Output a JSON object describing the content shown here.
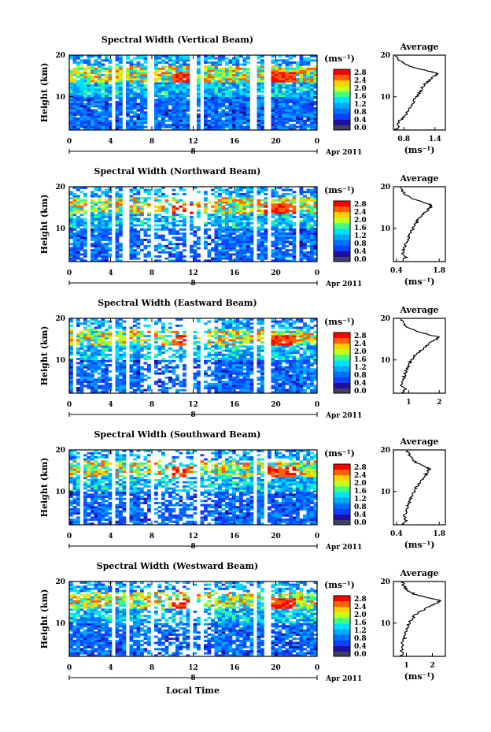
{
  "figure": {
    "x_axis_label": "Local Time",
    "date_label": "Apr 2011",
    "day_label": "8",
    "unit_label": "(ms⁻¹)",
    "y_axis_label": "Height (km)"
  },
  "colorbar": {
    "ticks": [
      "2.8",
      "2.4",
      "2.0",
      "1.6",
      "1.2",
      "0.8",
      "0.4",
      "0.0"
    ],
    "colors": [
      "#ff0000",
      "#ff8000",
      "#ffff00",
      "#80ff40",
      "#00ffff",
      "#0090ff",
      "#0040ff",
      "#404080",
      "#000000"
    ]
  },
  "chart_data": [
    {
      "type": "heatmap",
      "title": "Spectral Width (Vertical Beam)",
      "x_ticks": [
        "0",
        "4",
        "8",
        "12",
        "16",
        "20",
        "0"
      ],
      "y_ticks": [
        "20",
        "10"
      ],
      "xlim": [
        0,
        24
      ],
      "ylim": [
        2,
        20
      ],
      "avg_title": "Average",
      "avg_xlabel": "(ms⁻¹)",
      "avg_x_ticks": [
        "0.8",
        "1.4"
      ],
      "avg_xlim": [
        0.6,
        1.6
      ],
      "avg_profile": {
        "height": [
          2,
          3,
          4,
          5,
          6,
          7,
          8,
          9,
          10,
          11,
          12,
          13,
          14,
          15,
          15.5,
          16,
          17,
          18,
          19,
          20
        ],
        "value": [
          0.65,
          0.7,
          0.7,
          0.8,
          0.85,
          0.9,
          0.95,
          1.0,
          1.05,
          1.1,
          1.15,
          1.2,
          1.3,
          1.4,
          1.45,
          1.35,
          1.0,
          0.8,
          0.7,
          0.65
        ]
      }
    },
    {
      "type": "heatmap",
      "title": "Spectral Width (Northward Beam)",
      "x_ticks": [
        "0",
        "4",
        "8",
        "12",
        "16",
        "20",
        "0"
      ],
      "y_ticks": [
        "20",
        "10"
      ],
      "xlim": [
        0,
        24
      ],
      "ylim": [
        2,
        20
      ],
      "avg_title": "Average",
      "avg_xlabel": "(ms⁻¹)",
      "avg_x_ticks": [
        "0.4",
        "1.8"
      ],
      "avg_xlim": [
        0.3,
        2.0
      ],
      "avg_profile": {
        "height": [
          2,
          3,
          4,
          5,
          6,
          7,
          8,
          9,
          10,
          11,
          12,
          13,
          14,
          15,
          15.5,
          16,
          17,
          18,
          19,
          20
        ],
        "value": [
          0.6,
          0.7,
          0.6,
          0.65,
          0.7,
          0.75,
          0.8,
          0.85,
          0.95,
          1.0,
          1.1,
          1.2,
          1.35,
          1.5,
          1.55,
          1.4,
          1.0,
          0.7,
          0.6,
          0.55
        ]
      }
    },
    {
      "type": "heatmap",
      "title": "Spectral Width (Eastward Beam)",
      "x_ticks": [
        "0",
        "4",
        "8",
        "12",
        "16",
        "20",
        "0"
      ],
      "y_ticks": [
        "20",
        "10"
      ],
      "xlim": [
        0,
        24
      ],
      "ylim": [
        2,
        20
      ],
      "avg_title": "Average",
      "avg_xlabel": "",
      "avg_x_ticks": [
        "1",
        "2"
      ],
      "avg_xlim": [
        0.5,
        2.2
      ],
      "avg_profile": {
        "height": [
          2,
          3,
          4,
          5,
          6,
          7,
          8,
          9,
          10,
          11,
          12,
          13,
          14,
          15,
          15.5,
          16,
          17,
          18,
          19,
          20
        ],
        "value": [
          0.8,
          0.9,
          0.75,
          0.8,
          0.85,
          0.9,
          0.95,
          1.0,
          1.1,
          1.2,
          1.35,
          1.5,
          1.7,
          1.9,
          2.0,
          1.7,
          1.2,
          0.9,
          0.8,
          0.75
        ]
      }
    },
    {
      "type": "heatmap",
      "title": "Spectral Width (Southward Beam)",
      "x_ticks": [
        "0",
        "4",
        "8",
        "12",
        "16",
        "20",
        "0"
      ],
      "y_ticks": [
        "20",
        "10"
      ],
      "xlim": [
        0,
        24
      ],
      "ylim": [
        2,
        20
      ],
      "avg_title": "Average",
      "avg_xlabel": "(ms⁻¹)",
      "avg_x_ticks": [
        "0.4",
        "1.8"
      ],
      "avg_xlim": [
        0.3,
        2.0
      ],
      "avg_profile": {
        "height": [
          2,
          3,
          4,
          5,
          6,
          7,
          8,
          9,
          10,
          11,
          12,
          13,
          14,
          15,
          15.5,
          16,
          17,
          18,
          19,
          20
        ],
        "value": [
          0.6,
          0.7,
          0.65,
          0.7,
          0.75,
          0.8,
          0.85,
          0.9,
          1.0,
          1.05,
          1.15,
          1.25,
          1.35,
          1.45,
          1.5,
          1.3,
          1.05,
          0.9,
          0.8,
          0.7
        ]
      }
    },
    {
      "type": "heatmap",
      "title": "Spectral Width (Westward Beam)",
      "x_ticks": [
        "0",
        "4",
        "8",
        "12",
        "16",
        "20",
        "0"
      ],
      "y_ticks": [
        "20",
        "10"
      ],
      "xlim": [
        0,
        24
      ],
      "ylim": [
        2,
        20
      ],
      "avg_title": "Average",
      "avg_xlabel": "(ms⁻¹)",
      "avg_x_ticks": [
        "1",
        "2"
      ],
      "avg_xlim": [
        0.5,
        2.5
      ],
      "avg_profile": {
        "height": [
          2,
          3,
          4,
          5,
          6,
          7,
          8,
          9,
          10,
          11,
          12,
          13,
          14,
          15,
          15.5,
          16,
          17,
          18,
          19,
          20
        ],
        "value": [
          0.8,
          0.85,
          0.8,
          0.85,
          0.9,
          0.95,
          1.0,
          1.05,
          1.1,
          1.2,
          1.35,
          1.6,
          1.9,
          2.2,
          2.3,
          1.9,
          1.3,
          1.0,
          0.9,
          0.85
        ]
      }
    }
  ]
}
